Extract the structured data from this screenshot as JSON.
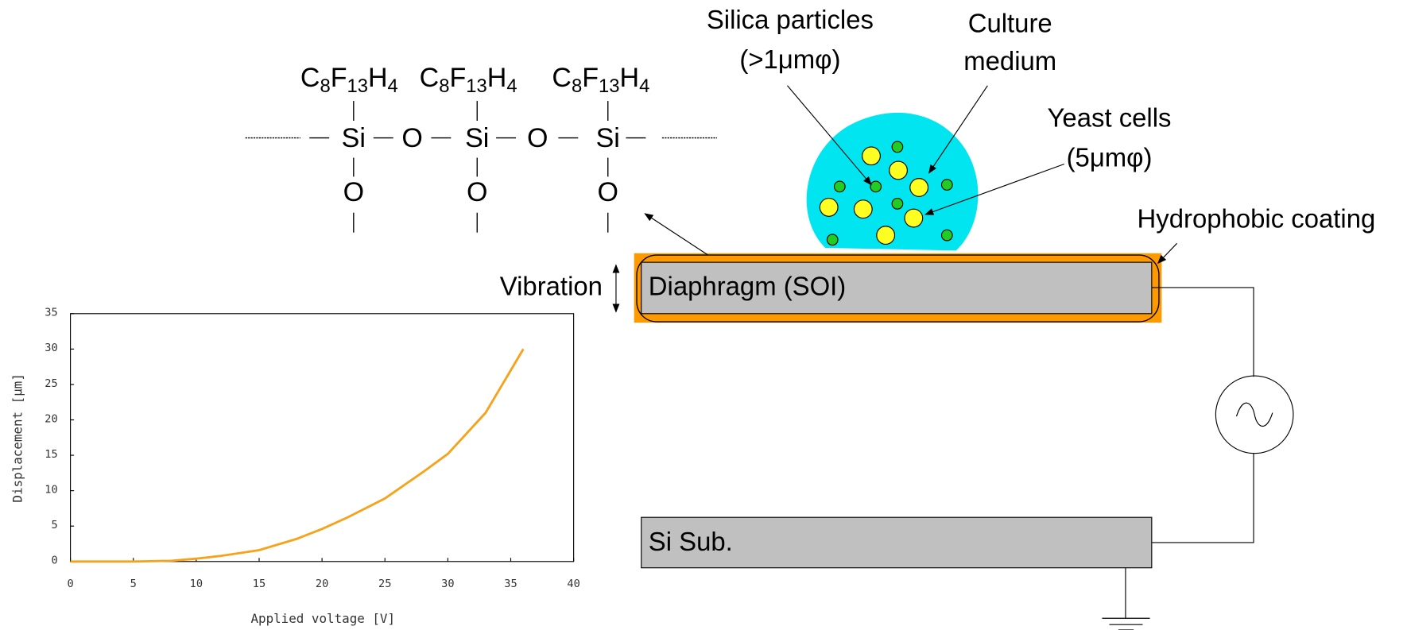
{
  "formula": {
    "groups": [
      [
        "C",
        "8",
        "F",
        "13",
        "H",
        "4"
      ],
      [
        "C",
        "8",
        "F",
        "13",
        "H",
        "4"
      ],
      [
        "C",
        "8",
        "F",
        "13",
        "H",
        "4"
      ]
    ],
    "backbone": [
      "Si",
      "O",
      "Si",
      "O",
      "Si"
    ],
    "side": [
      "O",
      "O",
      "O"
    ]
  },
  "labels": {
    "silica": [
      "Silica particles",
      "(>1μmφ)"
    ],
    "medium": [
      "Culture",
      "medium"
    ],
    "yeast": [
      "Yeast cells",
      "(5μmφ)"
    ],
    "coating": "Hydrophobic coating",
    "vibration": "Vibration",
    "diaphragm": "Diaphragm (SOI)",
    "substrate": "Si Sub."
  },
  "chart_data": {
    "type": "line",
    "x_label": "Applied voltage [V]",
    "y_label": "Displacement [μm]",
    "x": [
      0,
      5,
      8,
      10,
      12,
      15,
      18,
      20,
      22,
      25,
      28,
      30,
      33,
      36
    ],
    "series": [
      {
        "color": "#f7a21b",
        "values": [
          0,
          0,
          0.1,
          0.4,
          0.8,
          1.6,
          3.2,
          4.6,
          6.2,
          8.9,
          12.6,
          15.2,
          21,
          30
        ]
      }
    ],
    "xlim": [
      0,
      40
    ],
    "xticks": [
      0,
      5,
      10,
      15,
      20,
      25,
      30,
      35,
      40
    ],
    "ylim": [
      0,
      35
    ],
    "yticks": [
      0,
      5,
      10,
      15,
      20,
      25,
      30,
      35
    ]
  }
}
